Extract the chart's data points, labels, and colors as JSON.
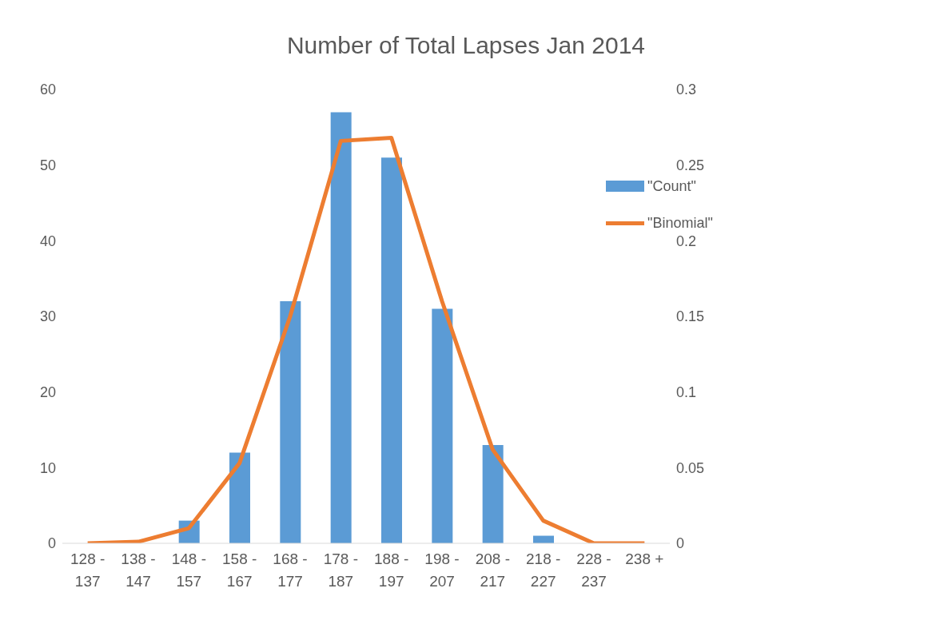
{
  "chart_data": {
    "type": "bar",
    "title": "Number of Total Lapses Jan 2014",
    "categories": [
      "128 - 137",
      "138 - 147",
      "148 - 157",
      "158 - 167",
      "168 - 177",
      "178 - 187",
      "188 - 197",
      "198 - 207",
      "208 - 217",
      "218 - 227",
      "228 - 237",
      "238 +"
    ],
    "series": [
      {
        "name": "\"Count\"",
        "color": "#5b9bd5",
        "values": [
          0,
          0,
          3,
          12,
          32,
          57,
          51,
          31,
          13,
          1,
          0,
          0
        ]
      },
      {
        "name": "\"Binomial\"",
        "type": "line",
        "axis": "y2",
        "color": "#ed7d31",
        "values": [
          0,
          0.001,
          0.01,
          0.053,
          0.15,
          0.266,
          0.268,
          0.16,
          0.062,
          0.015,
          0,
          0
        ]
      }
    ],
    "ylim": [
      0,
      60
    ],
    "yticks": [
      0,
      10,
      20,
      30,
      40,
      50,
      60
    ],
    "y2lim": [
      0,
      0.3
    ],
    "y2ticks": [
      0,
      0.05,
      0.1,
      0.15,
      0.2,
      0.25,
      0.3
    ],
    "grid": false,
    "legend": "top right",
    "marker": "none",
    "line_style": "solid"
  }
}
